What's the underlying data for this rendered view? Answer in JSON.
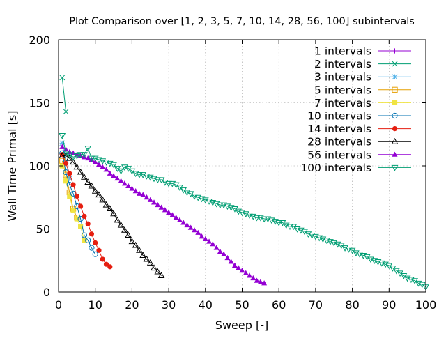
{
  "chart_data": {
    "type": "line",
    "title": "Plot Comparison over [1, 2, 3, 5, 7, 10, 14, 28, 56, 100] subintervals",
    "xlabel": "Sweep [-]",
    "ylabel": "Wall Time Primal [s]",
    "xlim": [
      0,
      100
    ],
    "ylim": [
      0,
      200
    ],
    "xticks": [
      0,
      10,
      20,
      30,
      40,
      50,
      60,
      70,
      80,
      90,
      100
    ],
    "yticks": [
      0,
      50,
      100,
      150,
      200
    ],
    "grid": true,
    "legend_position": "top-right",
    "series": [
      {
        "name": "1 intervals",
        "color": "#9400d3",
        "marker": "plus",
        "x": [
          1
        ],
        "y": [
          109
        ]
      },
      {
        "name": "2 intervals",
        "color": "#009e73",
        "marker": "cross",
        "x": [
          1,
          2
        ],
        "y": [
          170,
          143
        ]
      },
      {
        "name": "3 intervals",
        "color": "#56b4e9",
        "marker": "star",
        "x": [
          1,
          2,
          3
        ],
        "y": [
          118,
          104,
          90
        ]
      },
      {
        "name": "5 intervals",
        "color": "#e69f00",
        "marker": "square",
        "x": [
          1,
          2,
          3,
          4,
          5
        ],
        "y": [
          104,
          93,
          79,
          66,
          59
        ]
      },
      {
        "name": "7 intervals",
        "color": "#f0e442",
        "marker": "filled-square",
        "x": [
          1,
          2,
          3,
          4,
          5,
          6,
          7
        ],
        "y": [
          100,
          88,
          76,
          65,
          58,
          52,
          41
        ]
      },
      {
        "name": "10 intervals",
        "color": "#0072b2",
        "marker": "circle",
        "x": [
          1,
          2,
          3,
          4,
          5,
          6,
          7,
          8,
          9,
          10
        ],
        "y": [
          110,
          95,
          85,
          78,
          68,
          58,
          45,
          41,
          35,
          30
        ]
      },
      {
        "name": "14 intervals",
        "color": "#e51e10",
        "marker": "filled-circle",
        "x": [
          1,
          2,
          3,
          4,
          5,
          6,
          7,
          8,
          9,
          10,
          11,
          12,
          13,
          14
        ],
        "y": [
          109,
          102,
          94,
          85,
          76,
          68,
          60,
          54,
          46,
          39,
          33,
          26,
          22,
          20
        ]
      },
      {
        "name": "28 intervals",
        "color": "#000000",
        "marker": "triangle",
        "x": [
          1,
          2,
          3,
          4,
          5,
          6,
          7,
          8,
          9,
          10,
          11,
          12,
          13,
          14,
          15,
          16,
          17,
          18,
          19,
          20,
          21,
          22,
          23,
          24,
          25,
          26,
          27,
          28
        ],
        "y": [
          108,
          108,
          106,
          103,
          99,
          95,
          91,
          87,
          84,
          80,
          77,
          73,
          69,
          66,
          62,
          57,
          53,
          49,
          45,
          40,
          37,
          33,
          29,
          26,
          23,
          19,
          16,
          13
        ]
      },
      {
        "name": "56 intervals",
        "color": "#9400d3",
        "marker": "filled-triangle",
        "x": [
          1,
          2,
          3,
          4,
          5,
          6,
          7,
          8,
          9,
          10,
          11,
          12,
          13,
          14,
          15,
          16,
          17,
          18,
          19,
          20,
          21,
          22,
          23,
          24,
          25,
          26,
          27,
          28,
          29,
          30,
          31,
          32,
          33,
          34,
          35,
          36,
          37,
          38,
          39,
          40,
          41,
          42,
          43,
          44,
          45,
          46,
          47,
          48,
          49,
          50,
          51,
          52,
          53,
          54,
          55,
          56
        ],
        "y": [
          115,
          113,
          111,
          110,
          109,
          108,
          107,
          106,
          105,
          103,
          101,
          99,
          97,
          94,
          92,
          90,
          88,
          86,
          84,
          82,
          80,
          78,
          77,
          75,
          73,
          71,
          69,
          67,
          65,
          63,
          61,
          59,
          57,
          55,
          53,
          51,
          49,
          47,
          44,
          42,
          40,
          38,
          35,
          32,
          30,
          27,
          24,
          21,
          19,
          17,
          15,
          13,
          11,
          9,
          8,
          7
        ]
      },
      {
        "name": "100 intervals",
        "color": "#009e73",
        "marker": "down-triangle",
        "x": [
          1,
          2,
          3,
          4,
          5,
          6,
          7,
          8,
          9,
          10,
          11,
          12,
          13,
          14,
          15,
          16,
          17,
          18,
          19,
          20,
          21,
          22,
          23,
          24,
          25,
          26,
          27,
          28,
          29,
          30,
          31,
          32,
          33,
          34,
          35,
          36,
          37,
          38,
          39,
          40,
          41,
          42,
          43,
          44,
          45,
          46,
          47,
          48,
          49,
          50,
          51,
          52,
          53,
          54,
          55,
          56,
          57,
          58,
          59,
          60,
          61,
          62,
          63,
          64,
          65,
          66,
          67,
          68,
          69,
          70,
          71,
          72,
          73,
          74,
          75,
          76,
          77,
          78,
          79,
          80,
          81,
          82,
          83,
          84,
          85,
          86,
          87,
          88,
          89,
          90,
          91,
          92,
          93,
          94,
          95,
          96,
          97,
          98,
          99,
          100
        ],
        "y": [
          124,
          110,
          109,
          107,
          108,
          109,
          109,
          114,
          106,
          106,
          105,
          104,
          103,
          102,
          101,
          98,
          96,
          99,
          98,
          96,
          94,
          93,
          93,
          92,
          91,
          90,
          89,
          89,
          87,
          86,
          86,
          85,
          83,
          81,
          79,
          78,
          76,
          75,
          74,
          73,
          72,
          71,
          70,
          69,
          69,
          68,
          67,
          66,
          64,
          63,
          62,
          61,
          60,
          59,
          59,
          58,
          58,
          57,
          56,
          55,
          55,
          53,
          52,
          52,
          50,
          49,
          48,
          46,
          45,
          44,
          43,
          42,
          41,
          40,
          39,
          38,
          37,
          35,
          34,
          33,
          31,
          30,
          29,
          28,
          26,
          25,
          24,
          23,
          22,
          21,
          19,
          17,
          15,
          13,
          11,
          10,
          9,
          7,
          6,
          4
        ]
      }
    ]
  }
}
